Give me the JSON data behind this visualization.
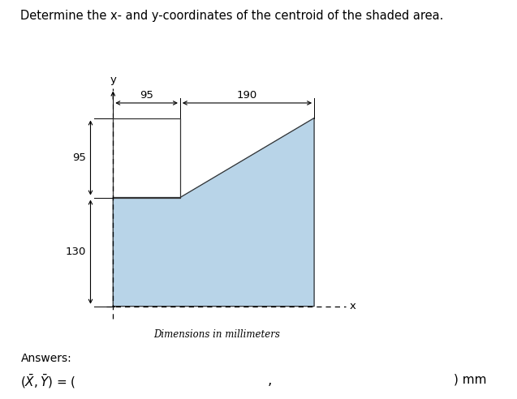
{
  "title": "Determine the x- and y-coordinates of the centroid of the shaded area.",
  "dim_label": "Dimensions in millimeters",
  "answers_label": "Answers:",
  "shape_vertices_x": [
    0,
    0,
    95,
    285,
    285,
    0
  ],
  "shape_vertices_y": [
    0,
    130,
    130,
    225,
    0,
    0
  ],
  "shape_fill_color": "#b8d4e8",
  "shape_edge_color": "#333333",
  "shape_linewidth": 0.9,
  "rect_outline_x": [
    0,
    0,
    95,
    95,
    0
  ],
  "rect_outline_y": [
    130,
    225,
    225,
    130,
    130
  ],
  "rect_edge_color": "#333333",
  "answer_box_color": "#3d8ec9",
  "answer_text_color": "#ffffff",
  "background_color": "#ffffff",
  "title_fontsize": 10.5,
  "dim_fontsize": 9.5,
  "ans_fontsize": 11
}
